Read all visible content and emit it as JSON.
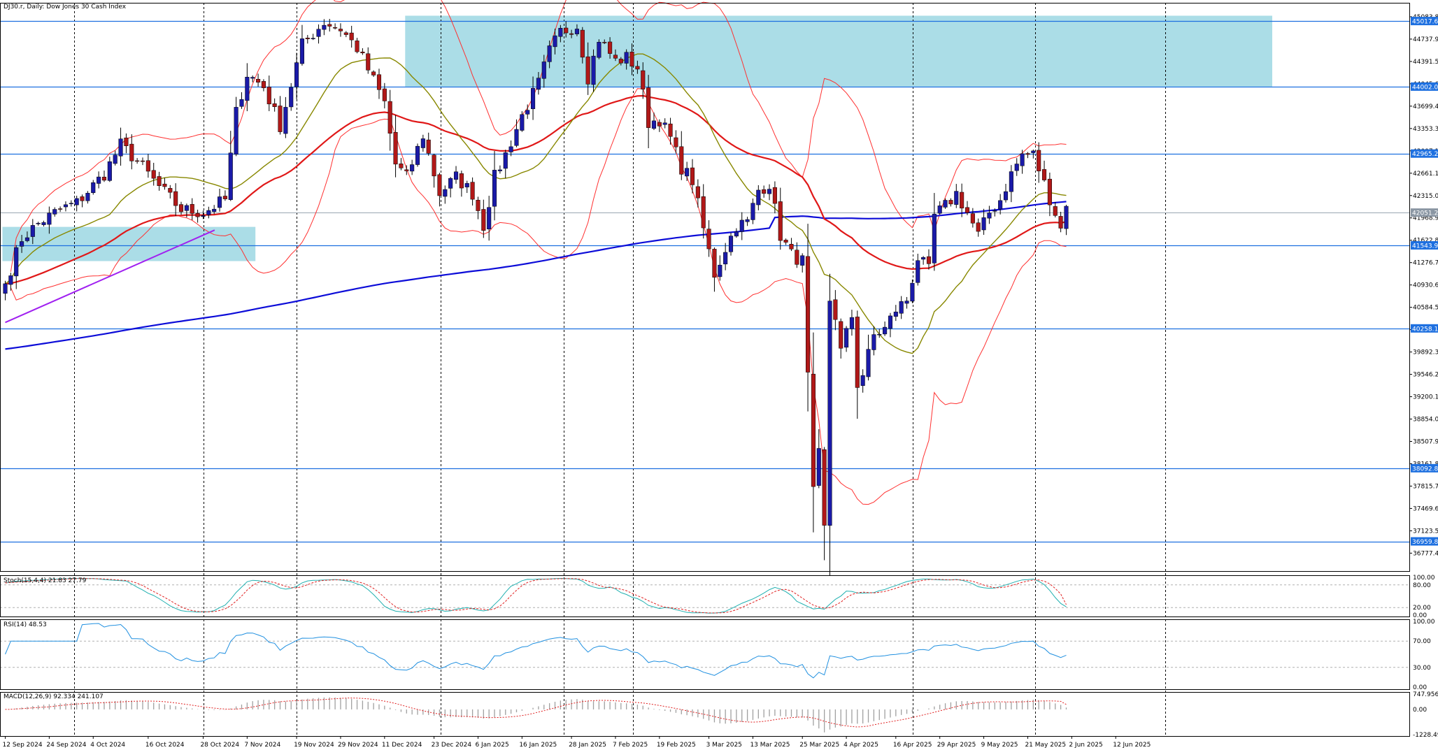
{
  "chart_data": {
    "type": "candlestick",
    "symbol": "DJ30.r",
    "timeframe": "Daily",
    "title": "DJ30.r, Daily: Dow Jones 30 Cash Index",
    "price_axis_ticks": [
      "45083.84",
      "44737.94",
      "44391.54",
      "44045.64",
      "43699.44",
      "43353.34",
      "43007.14",
      "42661.14",
      "42315.04",
      "41968.94",
      "41622.84",
      "41276.74",
      "40930.64",
      "40584.54",
      "40238.44",
      "39892.34",
      "39546.24",
      "39200.14",
      "38854.04",
      "38507.94",
      "38161.84",
      "37815.74",
      "37469.64",
      "37123.54",
      "36777.44"
    ],
    "price_ylim": [
      36500,
      45300
    ],
    "levels": [
      {
        "value": 45017.61,
        "label": "45017.61"
      },
      {
        "value": 44002.06,
        "label": "44002.06"
      },
      {
        "value": 42965.21,
        "label": "42965.21"
      },
      {
        "value": 41543.91,
        "label": "41543.91"
      },
      {
        "value": 40258.1,
        "label": "40258.10"
      },
      {
        "value": 38092.8,
        "label": "38092.80"
      },
      {
        "value": 36959.88,
        "label": "36959.88"
      }
    ],
    "current_price": {
      "value": 42051.28,
      "label": "42051.28"
    },
    "supply_zone": {
      "from": 44002.06,
      "to": 45100,
      "start_bar": 73,
      "end_bar": 999
    },
    "demand_zone": {
      "from": 41300,
      "to": 41830,
      "start_bar": 0,
      "end_bar": 45
    },
    "trendline": {
      "start_bar": 0,
      "start_price": 40350,
      "end_bar": 33,
      "end_price": 41780
    },
    "x_axis_labels": [
      {
        "bar": 0,
        "label": "12 Sep 2024"
      },
      {
        "bar": 8,
        "label": "24 Sep 2024"
      },
      {
        "bar": 16,
        "label": "4 Oct 2024"
      },
      {
        "bar": 26,
        "label": "16 Oct 2024"
      },
      {
        "bar": 36,
        "label": "28 Oct 2024"
      },
      {
        "bar": 44,
        "label": "7 Nov 2024"
      },
      {
        "bar": 53,
        "label": "19 Nov 2024"
      },
      {
        "bar": 61,
        "label": "29 Nov 2024"
      },
      {
        "bar": 69,
        "label": "11 Dec 2024"
      },
      {
        "bar": 78,
        "label": "23 Dec 2024"
      },
      {
        "bar": 86,
        "label": "6 Jan 2025"
      },
      {
        "bar": 94,
        "label": "16 Jan 2025"
      },
      {
        "bar": 103,
        "label": "28 Jan 2025"
      },
      {
        "bar": 111,
        "label": "7 Feb 2025"
      },
      {
        "bar": 119,
        "label": "19 Feb 2025"
      },
      {
        "bar": 128,
        "label": "3 Mar 2025"
      },
      {
        "bar": 136,
        "label": "13 Mar 2025"
      },
      {
        "bar": 145,
        "label": "25 Mar 2025"
      },
      {
        "bar": 153,
        "label": "4 Apr 2025"
      },
      {
        "bar": 162,
        "label": "16 Apr 2025"
      },
      {
        "bar": 170,
        "label": "29 Apr 2025"
      },
      {
        "bar": 178,
        "label": "9 May 2025"
      },
      {
        "bar": 186,
        "label": "21 May 2025"
      },
      {
        "bar": 194,
        "label": "2 Jun 2025"
      },
      {
        "bar": 202,
        "label": "12 Jun 2025"
      }
    ],
    "vertical_gridlines_bars": [
      0,
      14,
      38,
      59,
      81,
      108,
      119,
      174,
      198,
      222
    ],
    "close_anchors": [
      [
        0,
        40950
      ],
      [
        3,
        41650
      ],
      [
        6,
        41880
      ],
      [
        10,
        42100
      ],
      [
        13,
        42200
      ],
      [
        18,
        42650
      ],
      [
        21,
        43100
      ],
      [
        24,
        42850
      ],
      [
        28,
        42450
      ],
      [
        32,
        42100
      ],
      [
        36,
        42050
      ],
      [
        40,
        42250
      ],
      [
        42,
        43600
      ],
      [
        44,
        44200
      ],
      [
        47,
        44000
      ],
      [
        50,
        43400
      ],
      [
        54,
        44650
      ],
      [
        58,
        45000
      ],
      [
        61,
        44900
      ],
      [
        64,
        44600
      ],
      [
        67,
        44100
      ],
      [
        69,
        43750
      ],
      [
        71,
        42800
      ],
      [
        73,
        42600
      ],
      [
        76,
        43250
      ],
      [
        79,
        42350
      ],
      [
        82,
        42600
      ],
      [
        85,
        42350
      ],
      [
        87,
        41850
      ],
      [
        89,
        42600
      ],
      [
        91,
        42950
      ],
      [
        94,
        43550
      ],
      [
        97,
        44050
      ],
      [
        99,
        44550
      ],
      [
        101,
        44850
      ],
      [
        104,
        44950
      ],
      [
        106,
        44150
      ],
      [
        108,
        44750
      ],
      [
        111,
        44400
      ],
      [
        113,
        44450
      ],
      [
        115,
        44300
      ],
      [
        117,
        43450
      ],
      [
        119,
        43500
      ],
      [
        121,
        43200
      ],
      [
        123,
        42750
      ],
      [
        125,
        42550
      ],
      [
        127,
        41800
      ],
      [
        129,
        41100
      ],
      [
        131,
        41500
      ],
      [
        133,
        41850
      ],
      [
        135,
        41900
      ],
      [
        137,
        42400
      ],
      [
        139,
        42500
      ],
      [
        141,
        41700
      ],
      [
        143,
        41400
      ],
      [
        145,
        41300
      ],
      [
        147,
        37700
      ],
      [
        148,
        38300
      ],
      [
        149,
        37150
      ],
      [
        150,
        40700
      ],
      [
        151,
        40450
      ],
      [
        152,
        39900
      ],
      [
        154,
        40450
      ],
      [
        155,
        39400
      ],
      [
        156,
        39550
      ],
      [
        158,
        40150
      ],
      [
        160,
        40250
      ],
      [
        162,
        40550
      ],
      [
        164,
        40700
      ],
      [
        166,
        41350
      ],
      [
        168,
        41150
      ],
      [
        169,
        42000
      ],
      [
        171,
        42150
      ],
      [
        173,
        42350
      ],
      [
        175,
        42050
      ],
      [
        177,
        41700
      ],
      [
        179,
        42050
      ],
      [
        181,
        42250
      ],
      [
        183,
        42650
      ],
      [
        185,
        42950
      ],
      [
        187,
        42950
      ],
      [
        189,
        42500
      ],
      [
        191,
        42050
      ],
      [
        192,
        41800
      ],
      [
        193,
        42150
      ]
    ],
    "stoch": {
      "label": "Stoch(15,4,4) 21.83 27.79",
      "main": 21.83,
      "signal": 27.79,
      "levels": [
        80,
        20
      ],
      "ylim": [
        0,
        100
      ],
      "ticks": [
        "100.00",
        "80.00",
        "20.00",
        "0.00"
      ]
    },
    "rsi": {
      "label": "RSI(14) 48.53",
      "value": 48.53,
      "levels": [
        70,
        30
      ],
      "ylim": [
        0,
        100
      ],
      "ticks": [
        "100.00",
        "70.00",
        "30.00",
        "0.00"
      ]
    },
    "macd": {
      "label": "MACD(12,26,9) 92.334 241.107",
      "main": 92.334,
      "signal": 241.107,
      "ylim": [
        -1228.497,
        747.956
      ],
      "ticks": [
        "747.956",
        "0.00",
        "-1228.497"
      ]
    },
    "colors": {
      "bull": "#1a1aa8",
      "bear": "#b11818",
      "zone": "#abdde7",
      "level": "#1e70e0",
      "ma_fast": "#888800",
      "ma_mid": "#e01818",
      "ma_slow": "#0c0cd8",
      "bands": "#ff3030",
      "trend": "#a020f0",
      "stoch_main": "#20b0b0",
      "stoch_signal": "#e02020",
      "rsi": "#2090e0",
      "label_bg": "#1e70e0",
      "label_text": "#ffffff"
    }
  }
}
